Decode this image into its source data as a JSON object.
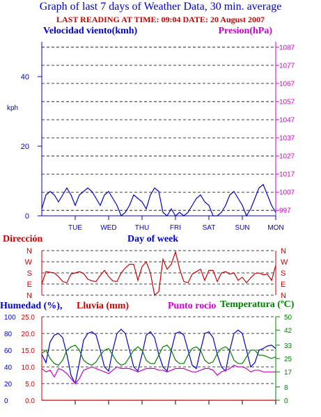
{
  "header": {
    "title": "Graph of last 7 days of Weather Data, 30 min. average",
    "last_reading": "LAST READING AT TIME: 09:04  DATE: 20 August 2007"
  },
  "colors": {
    "title": "#0000cc",
    "last_reading": "#cc0000",
    "wind": "#0000cc",
    "pressure": "#cc00cc",
    "direction": "#cc0000",
    "humidity": "#0000cc",
    "rain": "#cc0000",
    "dew_point": "#cc00cc",
    "temperature": "#008000",
    "grid": "#000000"
  },
  "chart_data": [
    {
      "type": "line",
      "left_axis_title": "Velocidad viento(kmh)",
      "right_axis_title": "Presion(hPa)",
      "ylabel": "kph",
      "xlabel": "Day of week",
      "x_ticks": [
        "TUE",
        "WED",
        "THU",
        "FRI",
        "SAT",
        "SUN",
        "MON"
      ],
      "ylim": [
        0,
        50
      ],
      "y_ticks": [
        0,
        20,
        40
      ],
      "y2lim": [
        994,
        1090
      ],
      "y2_ticks": [
        997,
        1007,
        1017,
        1027,
        1037,
        1047,
        1057,
        1067,
        1077,
        1087
      ],
      "grid": "dashed horizontal",
      "series": [
        {
          "name": "Velocidad viento(kmh)",
          "axis": "left",
          "x": [
            0,
            0.125,
            0.25,
            0.375,
            0.5,
            0.625,
            0.75,
            0.875,
            1,
            1.125,
            1.25,
            1.375,
            1.5,
            1.625,
            1.75,
            1.875,
            2,
            2.125,
            2.25,
            2.375,
            2.5,
            2.625,
            2.75,
            2.875,
            3,
            3.125,
            3.25,
            3.375,
            3.5,
            3.625,
            3.75,
            3.875,
            4,
            4.125,
            4.25,
            4.375,
            4.5,
            4.625,
            4.75,
            4.875,
            5,
            5.125,
            5.25,
            5.375,
            5.5,
            5.625,
            5.75,
            5.875,
            6,
            6.125,
            6.25,
            6.375,
            6.5,
            6.625,
            6.75,
            6.875,
            7
          ],
          "values": [
            2,
            6,
            7,
            6,
            4,
            6,
            8,
            6,
            3,
            6,
            7,
            8,
            7,
            5,
            3,
            6,
            7,
            5,
            3,
            0,
            1,
            3,
            6,
            5,
            4,
            2,
            6,
            8,
            7,
            1,
            0,
            2,
            0,
            1,
            0,
            1,
            3,
            5,
            6,
            4,
            3,
            0,
            0,
            1,
            3,
            6,
            7,
            5,
            3,
            0,
            2,
            5,
            8,
            9,
            6,
            3,
            1
          ]
        }
      ]
    },
    {
      "type": "line",
      "title": "Dirección",
      "y_ticks": [
        "N",
        "W",
        "S",
        "E",
        "N"
      ],
      "grid": "dashed horizontal",
      "series": [
        {
          "name": "Dirección",
          "x": [
            0,
            0.125,
            0.25,
            0.375,
            0.5,
            0.625,
            0.75,
            0.875,
            1,
            1.125,
            1.25,
            1.375,
            1.5,
            1.625,
            1.75,
            1.875,
            2,
            2.125,
            2.25,
            2.375,
            2.5,
            2.625,
            2.75,
            2.875,
            3,
            3.125,
            3.25,
            3.375,
            3.5,
            3.625,
            3.75,
            3.875,
            4,
            4.125,
            4.25,
            4.375,
            4.5,
            4.625,
            4.75,
            4.875,
            5,
            5.125,
            5.25,
            5.375,
            5.5,
            5.625,
            5.75,
            5.875,
            6,
            6.125,
            6.25,
            6.375,
            6.5,
            6.625,
            6.75,
            6.875,
            7
          ],
          "values": [
            90,
            190,
            185,
            180,
            150,
            110,
            100,
            170,
            180,
            190,
            175,
            130,
            115,
            110,
            160,
            200,
            150,
            115,
            110,
            180,
            220,
            250,
            250,
            120,
            230,
            270,
            180,
            0,
            30,
            290,
            210,
            250,
            350,
            210,
            110,
            100,
            170,
            190,
            210,
            120,
            200,
            200,
            110,
            180,
            190,
            170,
            180,
            120,
            145,
            100,
            140,
            175,
            180,
            165,
            170,
            120,
            240
          ]
        }
      ]
    },
    {
      "type": "line",
      "legend": [
        "Humedad (%),",
        "Lluvia (mm)",
        "Punto rocio",
        "Temperatura (ºC)"
      ],
      "left_axis_humidity_ticks": [
        0,
        20,
        40,
        60,
        80,
        100
      ],
      "left_axis_rain_ticks": [
        "0.0",
        "5.0",
        "10.0",
        "15.0",
        "20.0",
        "25.0"
      ],
      "ylim_humidity": [
        0,
        100
      ],
      "ylim_rain": [
        0,
        25
      ],
      "right_axis_ticks": [
        0,
        8,
        17,
        25,
        33,
        42,
        50
      ],
      "ylim_temperature": [
        0,
        50
      ],
      "grid": "dashed horizontal",
      "series": [
        {
          "name": "Humedad (%),",
          "axis": "humidity",
          "x": [
            0,
            0.125,
            0.25,
            0.375,
            0.5,
            0.625,
            0.75,
            0.875,
            1,
            1.125,
            1.25,
            1.375,
            1.5,
            1.625,
            1.75,
            1.875,
            2,
            2.125,
            2.25,
            2.375,
            2.5,
            2.625,
            2.75,
            2.875,
            3,
            3.125,
            3.25,
            3.375,
            3.5,
            3.625,
            3.75,
            3.875,
            4,
            4.125,
            4.25,
            4.375,
            4.5,
            4.625,
            4.75,
            4.875,
            5,
            5.125,
            5.25,
            5.375,
            5.5,
            5.625,
            5.75,
            5.875,
            6,
            6.125,
            6.25,
            6.375,
            6.5,
            6.625,
            6.75,
            6.875,
            7
          ],
          "values": [
            55,
            45,
            70,
            78,
            80,
            75,
            55,
            30,
            20,
            45,
            72,
            80,
            82,
            78,
            60,
            40,
            35,
            60,
            80,
            85,
            80,
            60,
            40,
            35,
            55,
            78,
            82,
            75,
            55,
            40,
            35,
            60,
            80,
            82,
            78,
            60,
            42,
            38,
            60,
            80,
            82,
            75,
            55,
            40,
            35,
            60,
            80,
            84,
            80,
            60,
            40,
            45,
            60,
            62,
            65,
            66,
            62
          ]
        },
        {
          "name": "Lluvia (mm)",
          "axis": "rain",
          "x": [
            0,
            7
          ],
          "values": [
            0,
            0
          ]
        },
        {
          "name": "Punto rocio",
          "axis": "temperature",
          "x": [
            0,
            0.125,
            0.25,
            0.375,
            0.5,
            0.625,
            0.75,
            0.875,
            1,
            1.125,
            1.25,
            1.375,
            1.5,
            1.625,
            1.75,
            1.875,
            2,
            2.125,
            2.25,
            2.375,
            2.5,
            2.625,
            2.75,
            2.875,
            3,
            3.125,
            3.25,
            3.375,
            3.5,
            3.625,
            3.75,
            3.875,
            4,
            4.125,
            4.25,
            4.375,
            4.5,
            4.625,
            4.75,
            4.875,
            5,
            5.125,
            5.25,
            5.375,
            5.5,
            5.625,
            5.75,
            5.875,
            6,
            6.125,
            6.25,
            6.375,
            6.5,
            6.625,
            6.75,
            6.875,
            7
          ],
          "values": [
            19,
            17,
            18,
            14,
            19,
            18,
            16,
            13,
            10,
            13,
            18,
            19,
            20,
            19,
            18,
            17,
            16,
            18,
            20,
            19,
            19,
            19,
            18,
            17,
            18,
            19,
            19,
            19,
            18,
            18,
            17,
            18,
            19,
            19,
            19,
            18,
            17,
            17,
            18,
            19,
            19,
            18,
            15,
            17,
            18,
            19,
            21,
            20,
            20,
            19,
            17,
            18,
            18,
            17,
            17,
            17,
            17
          ]
        },
        {
          "name": "Temperatura (ºC)",
          "axis": "temperature",
          "x": [
            0,
            0.125,
            0.25,
            0.375,
            0.5,
            0.625,
            0.75,
            0.875,
            1,
            1.125,
            1.25,
            1.375,
            1.5,
            1.625,
            1.75,
            1.875,
            2,
            2.125,
            2.25,
            2.375,
            2.5,
            2.625,
            2.75,
            2.875,
            3,
            3.125,
            3.25,
            3.375,
            3.5,
            3.625,
            3.75,
            3.875,
            4,
            4.125,
            4.25,
            4.375,
            4.5,
            4.625,
            4.75,
            4.875,
            5,
            5.125,
            5.25,
            5.375,
            5.5,
            5.625,
            5.75,
            5.875,
            6,
            6.125,
            6.25,
            6.375,
            6.5,
            6.625,
            6.75,
            6.875,
            7
          ],
          "values": [
            28,
            30,
            25,
            22,
            21,
            24,
            30,
            32,
            33,
            30,
            24,
            22,
            21,
            23,
            27,
            30,
            31,
            27,
            23,
            21,
            22,
            26,
            30,
            32,
            30,
            24,
            22,
            22,
            27,
            32,
            33,
            30,
            24,
            22,
            22,
            27,
            31,
            32,
            30,
            24,
            22,
            23,
            28,
            31,
            32,
            30,
            24,
            22,
            22,
            26,
            30,
            30,
            27,
            27,
            26,
            25,
            26
          ]
        }
      ]
    }
  ]
}
